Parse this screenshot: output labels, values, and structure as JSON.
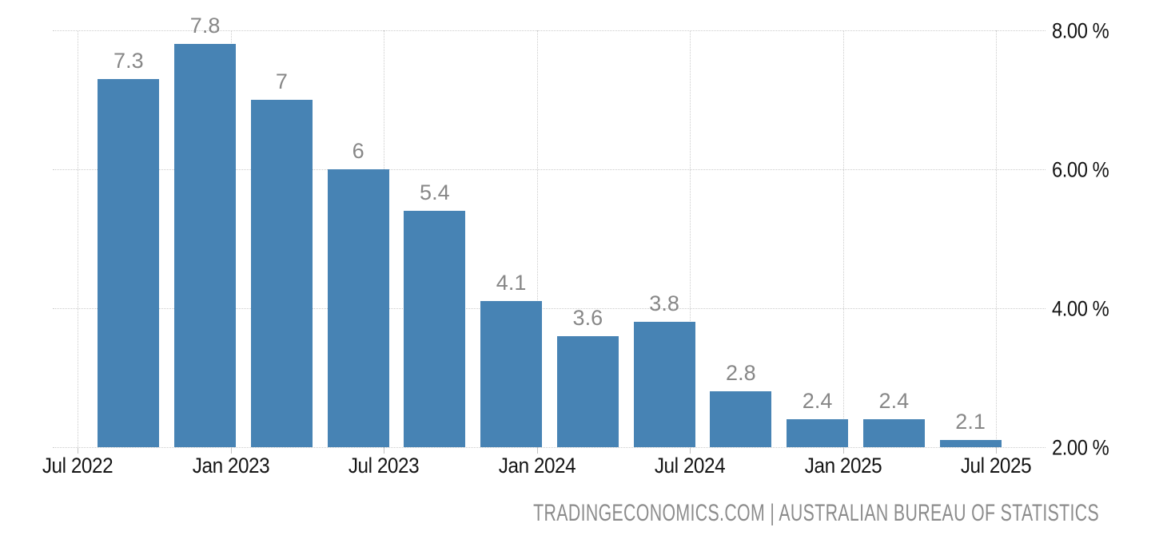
{
  "page": {
    "background_color": "#ffffff"
  },
  "chart_data": {
    "type": "bar",
    "categories": [
      "Sep 2022",
      "Dec 2022",
      "Mar 2023",
      "Jun 2023",
      "Sep 2023",
      "Dec 2023",
      "Mar 2024",
      "Jun 2024",
      "Sep 2024",
      "Dec 2024",
      "Mar 2025",
      "Jun 2025"
    ],
    "values": [
      7.3,
      7.8,
      7,
      6,
      5.4,
      4.1,
      3.6,
      3.8,
      2.8,
      2.4,
      2.4,
      2.1
    ],
    "bar_value_labels": [
      "7.3",
      "7.8",
      "7",
      "6",
      "5.4",
      "4.1",
      "3.6",
      "3.8",
      "2.8",
      "2.4",
      "2.4",
      "2.1"
    ],
    "x_tick_labels": [
      "Jul 2022",
      "Jan 2023",
      "Jul 2023",
      "Jan 2024",
      "Jul 2024",
      "Jan 2025",
      "Jul 2025"
    ],
    "x_range_months": [
      "Jul 2022",
      "Jul 2025"
    ],
    "y_ticks": [
      8,
      6,
      4,
      2
    ],
    "y_tick_labels": [
      "8.00 %",
      "6.00 %",
      "4.00 %",
      "2.00 %"
    ],
    "ylim": [
      2,
      8
    ],
    "grid": true,
    "legend": "none",
    "unit": "%",
    "colors": {
      "bar": "#4783B4",
      "value_label": "#878787",
      "axis_label": "#141414",
      "gridline": "#cccccc",
      "tick_mark": "#c2c2c2"
    }
  },
  "footer": {
    "attribution": "TRADINGECONOMICS.COM | AUSTRALIAN BUREAU OF STATISTICS",
    "attribution_color": "#8c8c8c"
  }
}
